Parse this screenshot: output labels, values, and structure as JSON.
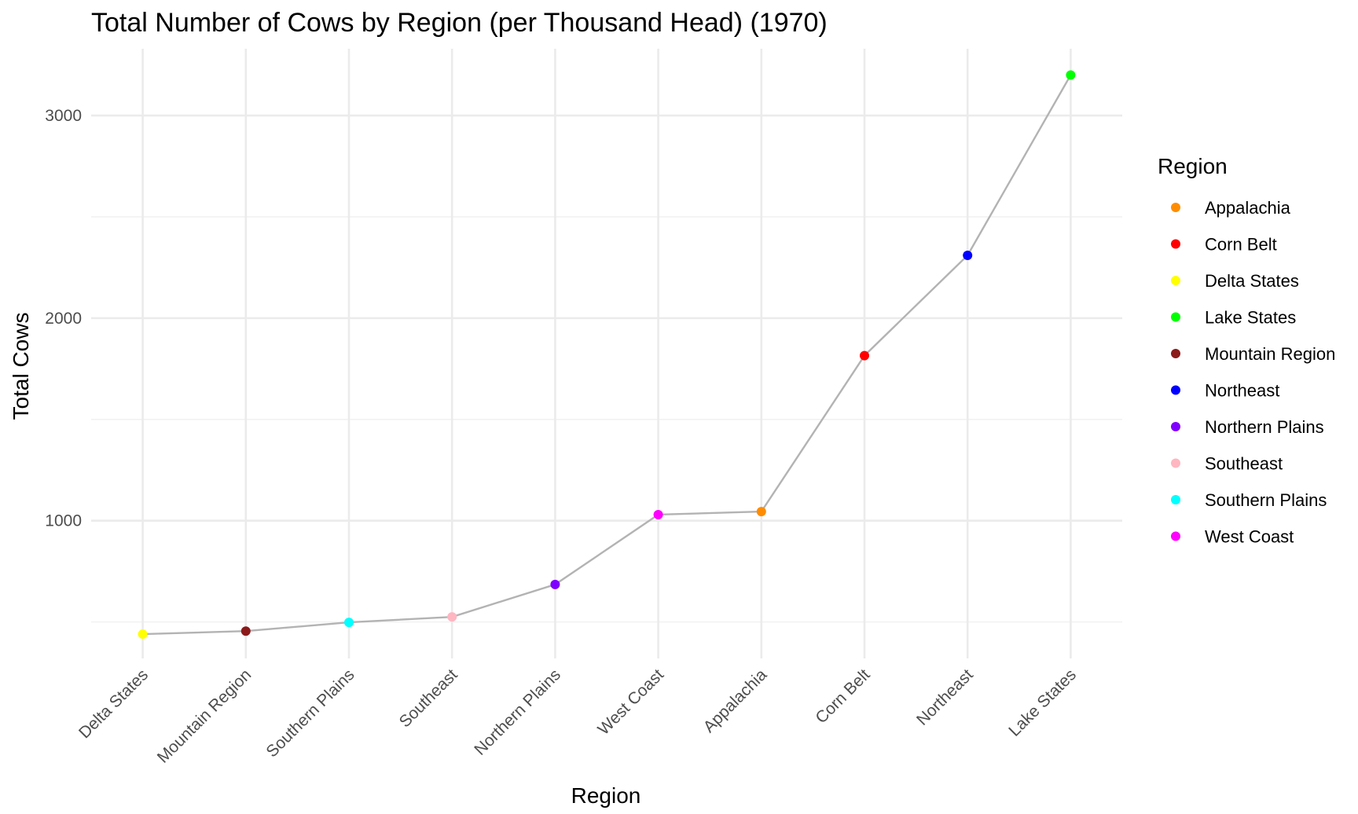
{
  "chart_data": {
    "type": "line",
    "title": "Total Number of Cows by Region (per Thousand Head) (1970)",
    "xlabel": "Region",
    "ylabel": "Total Cows",
    "categories": [
      "Delta States",
      "Mountain Region",
      "Southern Plains",
      "Southeast",
      "Northern Plains",
      "West Coast",
      "Appalachia",
      "Corn Belt",
      "Northeast",
      "Lake States"
    ],
    "values": [
      440,
      455,
      498,
      525,
      685,
      1030,
      1045,
      1815,
      2310,
      3200
    ],
    "point_colors": [
      "#FFFF00",
      "#8B1A1A",
      "#00FFFF",
      "#FFB6C1",
      "#8000FF",
      "#FF00FF",
      "#FF8C00",
      "#FF0000",
      "#0000FF",
      "#00FF00"
    ],
    "line_color": "#b3b3b3",
    "y_ticks": [
      1000,
      2000,
      3000
    ],
    "y_minor_ticks": [
      500,
      1500,
      2500
    ],
    "ylim": [
      320,
      3330
    ],
    "grid": true,
    "legend": {
      "title": "Region",
      "position": "right",
      "items": [
        {
          "label": "Appalachia",
          "color": "#FF8C00"
        },
        {
          "label": "Corn Belt",
          "color": "#FF0000"
        },
        {
          "label": "Delta States",
          "color": "#FFFF00"
        },
        {
          "label": "Lake States",
          "color": "#00FF00"
        },
        {
          "label": "Mountain Region",
          "color": "#8B1A1A"
        },
        {
          "label": "Northeast",
          "color": "#0000FF"
        },
        {
          "label": "Northern Plains",
          "color": "#8000FF"
        },
        {
          "label": "Southeast",
          "color": "#FFB6C1"
        },
        {
          "label": "Southern Plains",
          "color": "#00FFFF"
        },
        {
          "label": "West Coast",
          "color": "#FF00FF"
        }
      ]
    }
  }
}
